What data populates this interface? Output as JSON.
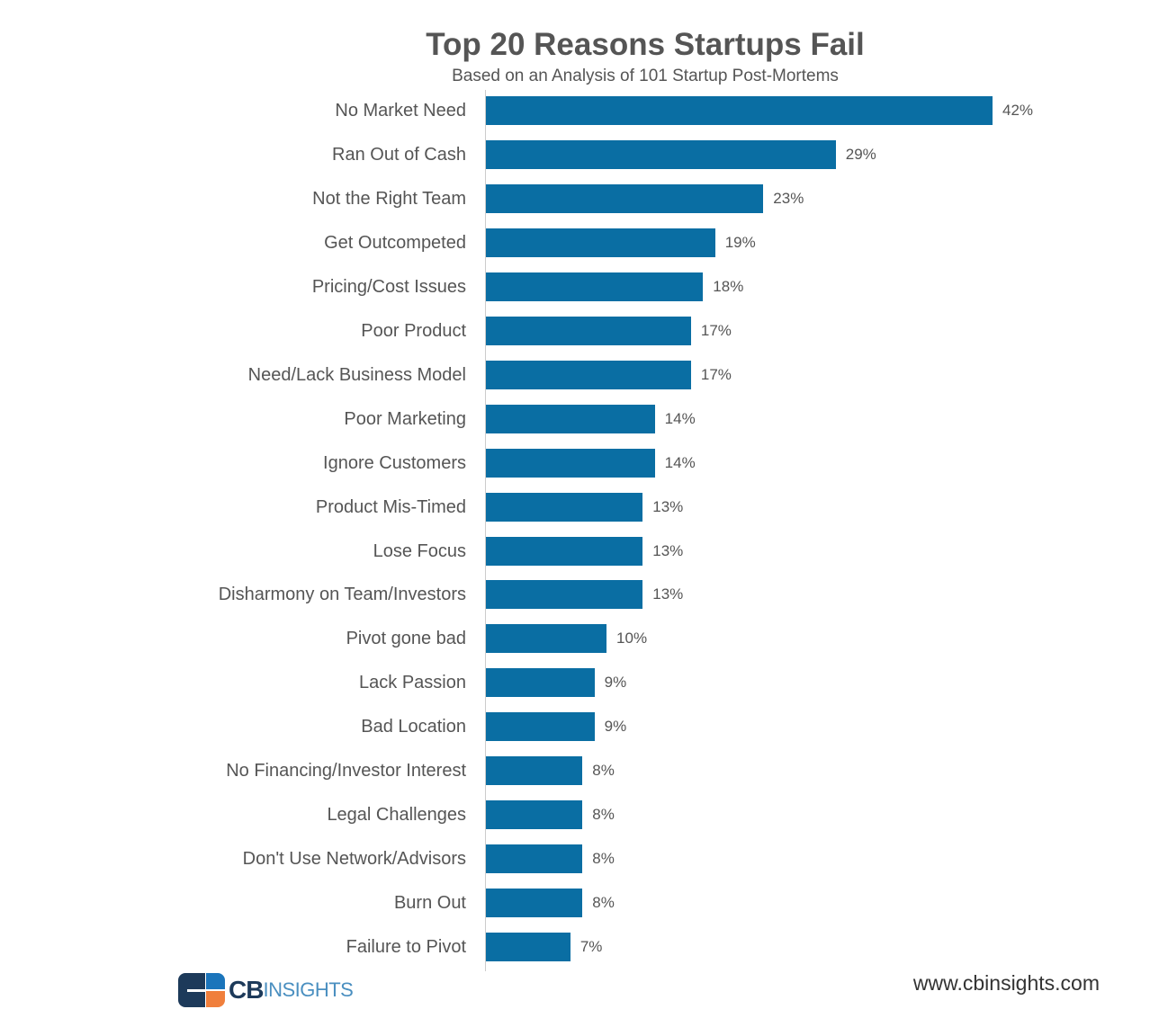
{
  "chart_data": {
    "type": "bar",
    "orientation": "horizontal",
    "title": "Top 20 Reasons Startups Fail",
    "subtitle": "Based on an Analysis of 101 Startup Post-Mortems",
    "categories": [
      "No Market Need",
      "Ran Out of Cash",
      "Not the Right Team",
      "Get Outcompeted",
      "Pricing/Cost Issues",
      "Poor Product",
      "Need/Lack Business Model",
      "Poor Marketing",
      "Ignore Customers",
      "Product Mis-Timed",
      "Lose Focus",
      "Disharmony on Team/Investors",
      "Pivot gone bad",
      "Lack Passion",
      "Bad Location",
      "No Financing/Investor Interest",
      "Legal Challenges",
      "Don't Use Network/Advisors",
      "Burn Out",
      "Failure to Pivot"
    ],
    "values": [
      42,
      29,
      23,
      19,
      18,
      17,
      17,
      14,
      14,
      13,
      13,
      13,
      10,
      9,
      9,
      8,
      8,
      8,
      8,
      7
    ],
    "value_labels": [
      "42%",
      "29%",
      "23%",
      "19%",
      "18%",
      "17%",
      "17%",
      "14%",
      "14%",
      "13%",
      "13%",
      "13%",
      "10%",
      "9%",
      "9%",
      "8%",
      "8%",
      "8%",
      "8%",
      "7%"
    ],
    "unit": "%",
    "xlabel": "",
    "ylabel": "",
    "xlim": [
      0,
      42
    ],
    "grid": false,
    "bar_color": "#0a6ea3"
  },
  "footer": {
    "logo_text_bold": "CB",
    "logo_text": "INSIGHTS",
    "url": "www.cbinsights.com"
  },
  "colors": {
    "logo_dark": "#1d3a5a",
    "logo_blue": "#1b75bb",
    "logo_orange": "#f07f3c"
  }
}
